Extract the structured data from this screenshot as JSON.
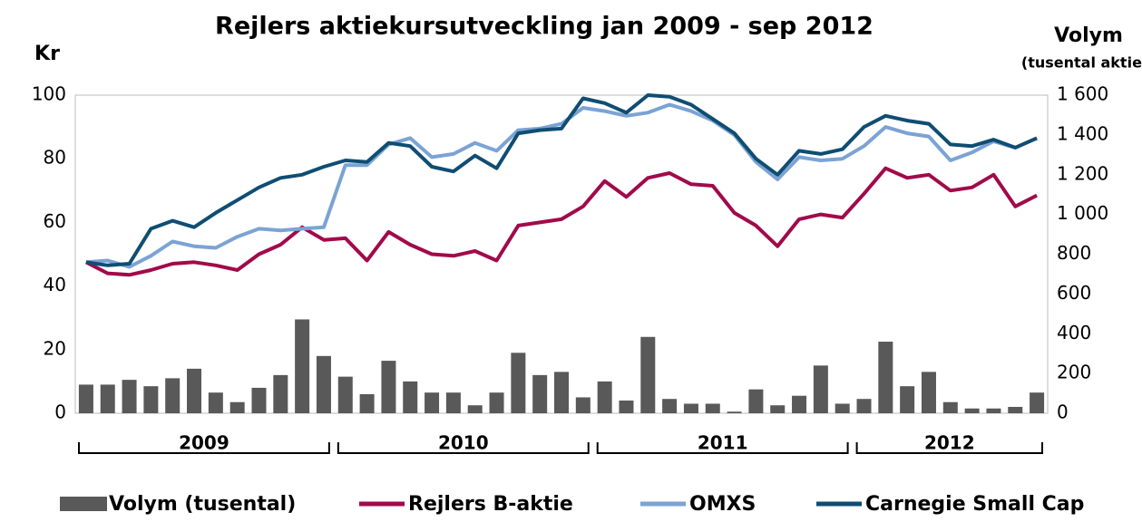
{
  "chart_data": {
    "type": "line",
    "title": "Rejlers aktiekursutveckling jan 2009 - sep 2012",
    "y_label": "Kr",
    "y2_label": "Volym",
    "y2_sublabel": "(tusental aktier)",
    "categories": [
      null,
      null,
      null,
      null,
      null,
      null,
      null,
      null,
      null,
      null,
      null,
      null,
      null,
      null,
      null,
      null,
      null,
      null,
      null,
      null,
      null,
      null,
      null,
      null,
      null,
      null,
      null,
      null,
      null,
      null,
      null,
      null,
      null,
      null,
      null,
      null,
      null,
      null,
      null,
      null,
      null,
      null,
      null,
      null,
      null
    ],
    "year_groups": [
      {
        "label": "2009",
        "count": 12
      },
      {
        "label": "2010",
        "count": 12
      },
      {
        "label": "2011",
        "count": 12
      },
      {
        "label": "2012",
        "count": 9
      }
    ],
    "ylim": [
      0,
      100
    ],
    "yticks": [
      0,
      20,
      40,
      60,
      80,
      100
    ],
    "y2lim": [
      0,
      1600
    ],
    "y2ticks": [
      0,
      200,
      400,
      600,
      800,
      {
        "value": 1000,
        "label": "1 000"
      },
      {
        "value": 1200,
        "label": "1 200"
      },
      {
        "value": 1400,
        "label": "1 400"
      },
      {
        "value": 1600,
        "label": "1 600"
      }
    ],
    "series": [
      {
        "name": "Volym (tusental)",
        "type": "bar",
        "axis": "y2",
        "color": "#595959",
        "values": [
          144,
          144,
          168,
          136,
          176,
          224,
          104,
          56,
          128,
          192,
          472,
          288,
          184,
          96,
          264,
          160,
          104,
          104,
          40,
          104,
          304,
          192,
          208,
          80,
          160,
          64,
          384,
          72,
          48,
          48,
          8,
          120,
          40,
          88,
          240,
          48,
          72,
          360,
          136,
          208,
          56,
          24,
          24,
          32,
          104
        ]
      },
      {
        "name": "Rejlers B-aktie",
        "type": "line",
        "color": "#a10a4a",
        "values": [
          47.5,
          44,
          43.5,
          45,
          47,
          47.5,
          46.5,
          45,
          50,
          53,
          58.5,
          54.5,
          55,
          48,
          57,
          53,
          50,
          49.5,
          51,
          48,
          59,
          60,
          61,
          65,
          73,
          68,
          74,
          75.5,
          72,
          71.5,
          63,
          59,
          52.5,
          61,
          62.5,
          61.5,
          69,
          77,
          74,
          75,
          70,
          71,
          75,
          65,
          68.5
        ]
      },
      {
        "name": "OMXS",
        "type": "line",
        "color": "#7ba3d4",
        "values": [
          47.5,
          48,
          46,
          49.5,
          54,
          52.5,
          52,
          55.5,
          58,
          57.5,
          58,
          58.5,
          78,
          78,
          84.5,
          86.5,
          80.5,
          81.5,
          85,
          82.5,
          89,
          89.5,
          91,
          96,
          95,
          93.5,
          94.5,
          97,
          95,
          92,
          87.5,
          79,
          73.5,
          80.5,
          79.5,
          80,
          84,
          90,
          88,
          87,
          79.5,
          82,
          85.5,
          83.5,
          86.5
        ]
      },
      {
        "name": "Carnegie Small Cap",
        "type": "line",
        "color": "#0f4d73",
        "values": [
          47.5,
          46.5,
          47,
          58,
          60.5,
          58.5,
          63,
          67,
          71,
          74,
          75,
          77.5,
          79.5,
          79,
          85,
          84,
          77.5,
          76,
          81,
          77,
          88,
          89,
          89.5,
          99,
          97.5,
          94.5,
          100,
          99.5,
          97,
          92.5,
          88,
          80,
          75,
          82.5,
          81.5,
          83,
          90,
          93.5,
          92,
          91,
          84.5,
          84,
          86,
          83.5,
          86.5
        ]
      }
    ]
  }
}
